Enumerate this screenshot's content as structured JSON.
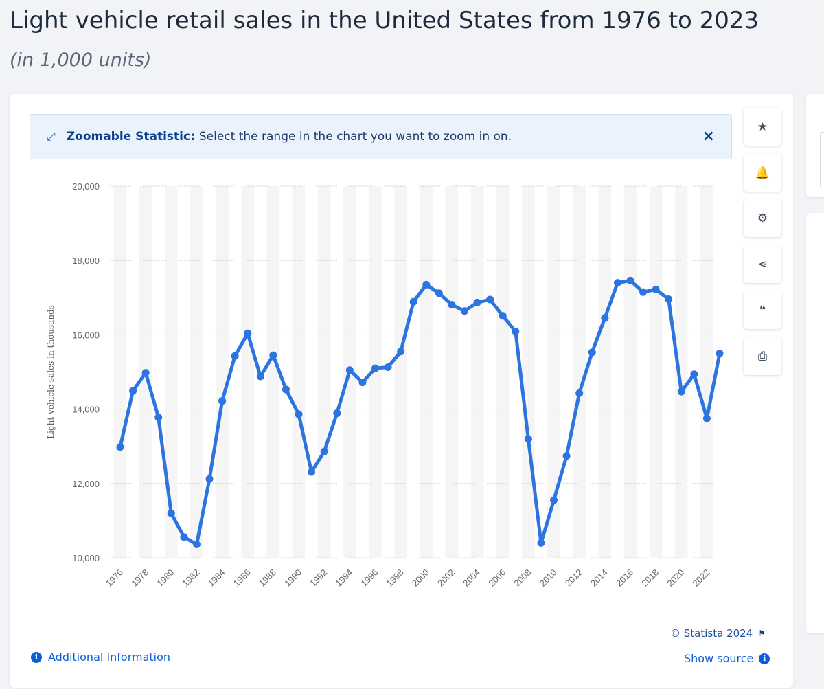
{
  "header": {
    "title": "Light vehicle retail sales in the United States from 1976 to 2023",
    "subtitle": "(in 1,000 units)"
  },
  "zoom_banner": {
    "label": "Zoomable Statistic:",
    "text": "Select the range in the chart you want to zoom in on.",
    "close": "×",
    "icon": "expand-arrows-icon"
  },
  "toolbar": [
    {
      "name": "favorite-button",
      "icon": "star-icon",
      "glyph": "★"
    },
    {
      "name": "notification-button",
      "icon": "bell-icon",
      "glyph": "🔔"
    },
    {
      "name": "settings-button",
      "icon": "gear-icon",
      "glyph": "⚙"
    },
    {
      "name": "share-button",
      "icon": "share-icon",
      "glyph": "⋖"
    },
    {
      "name": "cite-button",
      "icon": "quote-icon",
      "glyph": "❝"
    },
    {
      "name": "print-button",
      "icon": "print-icon",
      "glyph": "⎙"
    }
  ],
  "footer": {
    "additional_info": "Additional Information",
    "copyright": "© Statista 2024",
    "show_source": "Show source"
  },
  "colors": {
    "line": "#2c74e0",
    "band": "#f5f5f5",
    "grid": "#c8c8c8",
    "link": "#0b5ed7"
  },
  "chart_data": {
    "type": "line",
    "title": "",
    "xlabel": "",
    "ylabel": "Light vehicle sales in thousands",
    "ylim": [
      10000,
      20000
    ],
    "yticks": [
      10000,
      12000,
      14000,
      16000,
      18000,
      20000
    ],
    "ytick_labels": [
      "10,000",
      "12,000",
      "14,000",
      "16,000",
      "18,000",
      "20,000"
    ],
    "x_tick_labels": [
      "1976",
      "1978",
      "1980",
      "1982",
      "1984",
      "1986",
      "1988",
      "1990",
      "1992",
      "1994",
      "1996",
      "1998",
      "2000",
      "2002",
      "2004",
      "2006",
      "2008",
      "2010",
      "2012",
      "2014",
      "2016",
      "2018",
      "2020",
      "2022"
    ],
    "grid": true,
    "legend": "none",
    "x": [
      1976,
      1977,
      1978,
      1979,
      1980,
      1981,
      1982,
      1983,
      1984,
      1985,
      1986,
      1987,
      1988,
      1989,
      1990,
      1991,
      1992,
      1993,
      1994,
      1995,
      1996,
      1997,
      1998,
      1999,
      2000,
      2001,
      2002,
      2003,
      2004,
      2005,
      2006,
      2007,
      2008,
      2009,
      2010,
      2011,
      2012,
      2013,
      2014,
      2015,
      2016,
      2017,
      2018,
      2019,
      2020,
      2021,
      2022,
      2023
    ],
    "series": [
      {
        "values": [
          12980,
          14490,
          14980,
          13780,
          11200,
          10560,
          10360,
          12120,
          14220,
          15430,
          16040,
          14880,
          15450,
          14530,
          13860,
          12310,
          12860,
          13890,
          15050,
          14720,
          15100,
          15130,
          15550,
          16890,
          17350,
          17120,
          16810,
          16640,
          16870,
          16950,
          16510,
          16090,
          13200,
          10400,
          11550,
          12740,
          14430,
          15530,
          16450,
          17400,
          17460,
          17150,
          17220,
          16960,
          14470,
          14940,
          13750,
          15500
        ]
      }
    ]
  }
}
